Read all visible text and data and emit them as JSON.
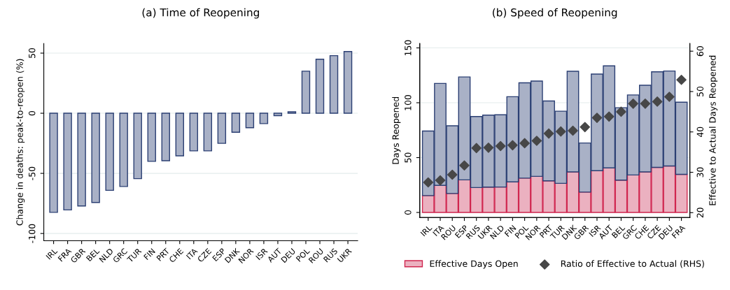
{
  "chart_data": [
    {
      "type": "bar",
      "title": "(a) Time of Reopening",
      "ylabel": "Change in deaths: peak-to-reopen (%)",
      "categories": [
        "IRL",
        "FRA",
        "GBR",
        "BEL",
        "NLD",
        "GRC",
        "TUR",
        "FIN",
        "PRT",
        "CHE",
        "ITA",
        "CZE",
        "ESP",
        "DNK",
        "NOR",
        "ISR",
        "AUT",
        "DEU",
        "POL",
        "ROU",
        "RUS",
        "UKR"
      ],
      "values": [
        -82.4,
        -80.4,
        -77.1,
        -74.2,
        -64.1,
        -60.9,
        -54.4,
        -40,
        -39.5,
        -35.4,
        -31.3,
        -31.3,
        -25,
        -15.8,
        -12,
        -8.6,
        -2,
        1.2,
        35,
        44.9,
        47.9,
        51.3
      ],
      "color": "#a9b1c6",
      "ylim": [
        -106,
        58
      ],
      "yticks": [
        -100,
        -50,
        0,
        50
      ],
      "grid": "y"
    },
    {
      "type": "bar",
      "title": "(b) Speed of Reopening",
      "ylabel": "Days Reopened",
      "y2label": "Effective to Actual Days Reopened",
      "categories": [
        "IRL",
        "ITA",
        "ROU",
        "ESP",
        "RUS",
        "UKR",
        "NLD",
        "FIN",
        "POL",
        "NOR",
        "PRT",
        "TUR",
        "DNK",
        "GBR",
        "ISR",
        "AUT",
        "BEL",
        "GRC",
        "CHE",
        "CZE",
        "DEU",
        "FRA"
      ],
      "stacked": true,
      "series": [
        {
          "name": "Effective Days Open",
          "color": "#ebb1c0",
          "values": [
            15.4,
            24.7,
            17.3,
            29.7,
            22.7,
            23.1,
            23.2,
            27.9,
            31.3,
            32.9,
            28.8,
            26.5,
            37.0,
            18.6,
            38.1,
            40.6,
            29.5,
            34.2,
            37.0,
            41.1,
            42.4,
            34.7
          ]
        },
        {
          "color": "#a9b1c6",
          "values": [
            58.8,
            92.9,
            61.7,
            93.8,
            64.7,
            65.6,
            65.8,
            77.6,
            86.9,
            86.9,
            72.8,
            65.8,
            91.7,
            44.7,
            88.0,
            93.0,
            66.0,
            72.9,
            78.9,
            87.1,
            86.5,
            65.8
          ]
        },
        {
          "name": "Ratio of Effective to Actual (RHS)",
          "type": "scatter",
          "axis": "y2",
          "marker": "diamond",
          "color": "#474747",
          "values": [
            27.5,
            28.0,
            29.4,
            31.7,
            36.0,
            36.1,
            36.5,
            36.7,
            37.2,
            37.8,
            39.6,
            40.1,
            40.3,
            41.2,
            43.5,
            43.8,
            45.0,
            47.0,
            47.0,
            47.5,
            48.7,
            52.9
          ]
        }
      ],
      "ylim": [
        -4.6,
        154
      ],
      "yticks": [
        0,
        50,
        100,
        150
      ],
      "y2lim": [
        18.8,
        61.9
      ],
      "y2ticks": [
        20,
        30,
        40,
        50,
        60
      ],
      "grid": "y",
      "legend": "bottom"
    }
  ]
}
